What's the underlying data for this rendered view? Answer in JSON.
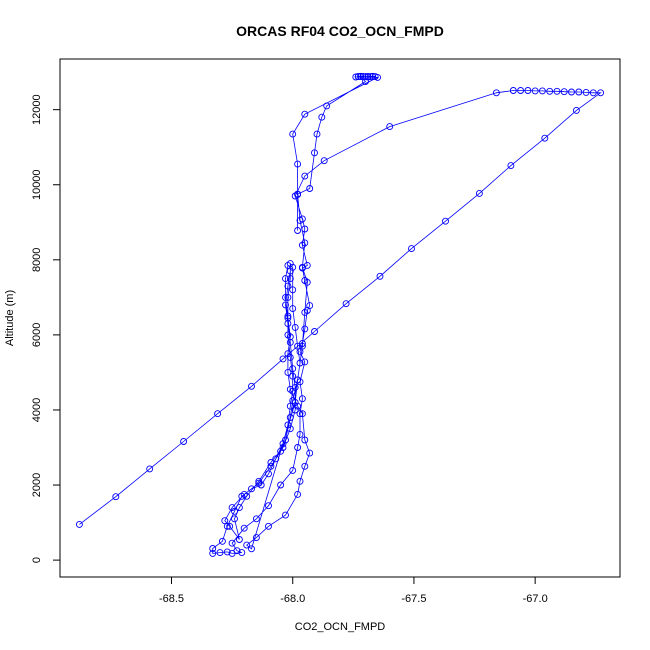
{
  "chart_data": {
    "type": "line",
    "title": "ORCAS RF04 CO2_OCN_FMPD",
    "xlabel": "CO2_OCN_FMPD",
    "ylabel": "Altitude (m)",
    "xlim": [
      -68.96,
      -66.65
    ],
    "ylim": [
      -450,
      13350
    ],
    "xticks": [
      -68.5,
      -68.0,
      -67.5,
      -67.0
    ],
    "xtick_labels": [
      "-68.5",
      "-68.0",
      "-67.5",
      "-67.0"
    ],
    "yticks": [
      0,
      2000,
      4000,
      6000,
      8000,
      10000,
      12000
    ],
    "ytick_labels": [
      "0",
      "2000",
      "4000",
      "6000",
      "8000",
      "10000",
      "12000"
    ],
    "grid": false,
    "series": [
      {
        "color": "#0000ff",
        "marker": "open-circle",
        "points": [
          [
            -68.88,
            950
          ],
          [
            -68.73,
            1690
          ],
          [
            -68.59,
            2430
          ],
          [
            -68.45,
            3160
          ],
          [
            -68.31,
            3900
          ],
          [
            -68.17,
            4630
          ],
          [
            -68.04,
            5360
          ],
          [
            -67.91,
            6090
          ],
          [
            -67.78,
            6830
          ],
          [
            -67.64,
            7560
          ],
          [
            -67.51,
            8300
          ],
          [
            -67.37,
            9030
          ],
          [
            -67.23,
            9770
          ],
          [
            -67.1,
            10510
          ],
          [
            -66.96,
            11240
          ],
          [
            -66.83,
            11980
          ],
          [
            -66.73,
            12450
          ],
          [
            -66.76,
            12450
          ],
          [
            -66.79,
            12460
          ],
          [
            -66.82,
            12470
          ],
          [
            -66.85,
            12470
          ],
          [
            -66.88,
            12480
          ],
          [
            -66.91,
            12490
          ],
          [
            -66.94,
            12490
          ],
          [
            -66.97,
            12500
          ],
          [
            -67.0,
            12500
          ],
          [
            -67.03,
            12510
          ],
          [
            -67.06,
            12510
          ],
          [
            -67.09,
            12510
          ],
          [
            -67.16,
            12450
          ],
          [
            -67.6,
            11550
          ],
          [
            -67.87,
            10640
          ],
          [
            -67.95,
            10230
          ],
          [
            -67.99,
            9700
          ],
          [
            -67.96,
            9090
          ],
          [
            -67.95,
            8820
          ],
          [
            -67.96,
            8390
          ],
          [
            -67.94,
            7850
          ],
          [
            -67.96,
            7780
          ],
          [
            -67.95,
            7450
          ],
          [
            -67.93,
            6780
          ],
          [
            -67.94,
            6650
          ],
          [
            -67.95,
            6160
          ],
          [
            -67.96,
            5770
          ],
          [
            -67.97,
            5550
          ],
          [
            -67.95,
            5280
          ],
          [
            -67.97,
            4750
          ],
          [
            -67.96,
            4300
          ],
          [
            -67.97,
            3900
          ],
          [
            -67.97,
            3350
          ],
          [
            -67.98,
            3000
          ],
          [
            -68.0,
            2390
          ],
          [
            -68.05,
            2000
          ],
          [
            -68.1,
            1450
          ],
          [
            -68.15,
            1100
          ],
          [
            -68.2,
            850
          ],
          [
            -68.25,
            450
          ],
          [
            -68.23,
            250
          ],
          [
            -68.21,
            200
          ],
          [
            -68.25,
            180
          ],
          [
            -68.27,
            220
          ],
          [
            -68.3,
            200
          ],
          [
            -68.33,
            180
          ],
          [
            -68.33,
            310
          ],
          [
            -68.29,
            500
          ],
          [
            -68.27,
            900
          ],
          [
            -68.24,
            1300
          ],
          [
            -68.21,
            1700
          ],
          [
            -68.17,
            1900
          ],
          [
            -68.13,
            2000
          ],
          [
            -68.1,
            2300
          ],
          [
            -68.07,
            2700
          ],
          [
            -68.04,
            3100
          ],
          [
            -68.02,
            3600
          ],
          [
            -68.01,
            4100
          ],
          [
            -68.0,
            4500
          ],
          [
            -68.0,
            4900
          ],
          [
            -68.01,
            5400
          ],
          [
            -68.02,
            6000
          ],
          [
            -68.02,
            6500
          ],
          [
            -68.02,
            7000
          ],
          [
            -68.01,
            7500
          ],
          [
            -68.01,
            7900
          ],
          [
            -68.01,
            7700
          ],
          [
            -68.02,
            7300
          ],
          [
            -68.03,
            6800
          ],
          [
            -68.02,
            6300
          ],
          [
            -68.01,
            5800
          ],
          [
            -68.0,
            5100
          ],
          [
            -67.99,
            4600
          ],
          [
            -67.99,
            4000
          ],
          [
            -68.01,
            3500
          ],
          [
            -68.04,
            3000
          ],
          [
            -68.09,
            2600
          ],
          [
            -68.14,
            2100
          ],
          [
            -68.19,
            1700
          ],
          [
            -68.22,
            1400
          ],
          [
            -68.24,
            1100
          ],
          [
            -68.22,
            550
          ],
          [
            -68.26,
            900
          ],
          [
            -68.28,
            1050
          ],
          [
            -68.25,
            1400
          ],
          [
            -68.2,
            1750
          ],
          [
            -68.14,
            2050
          ],
          [
            -68.09,
            2500
          ],
          [
            -68.05,
            2900
          ],
          [
            -68.03,
            3200
          ],
          [
            -68.01,
            3800
          ],
          [
            -68.0,
            4250
          ],
          [
            -67.98,
            4800
          ],
          [
            -67.97,
            5250
          ],
          [
            -67.98,
            5700
          ],
          [
            -67.99,
            6200
          ],
          [
            -68.0,
            6700
          ],
          [
            -68.0,
            7200
          ],
          [
            -68.0,
            7800
          ],
          [
            -68.02,
            7850
          ],
          [
            -68.03,
            7500
          ],
          [
            -68.03,
            7000
          ],
          [
            -68.02,
            6450
          ],
          [
            -68.01,
            5950
          ],
          [
            -68.02,
            5500
          ],
          [
            -68.02,
            5000
          ],
          [
            -68.01,
            4550
          ],
          [
            -67.98,
            4100
          ],
          [
            -67.96,
            3900
          ],
          [
            -67.95,
            3200
          ],
          [
            -67.93,
            2850
          ],
          [
            -67.95,
            2500
          ],
          [
            -67.97,
            2100
          ],
          [
            -67.98,
            1750
          ],
          [
            -68.03,
            1200
          ],
          [
            -68.1,
            900
          ],
          [
            -68.15,
            600
          ],
          [
            -68.19,
            400
          ],
          [
            -68.17,
            300
          ],
          [
            -67.99,
            4200
          ],
          [
            -67.98,
            4800
          ],
          [
            -67.96,
            5700
          ],
          [
            -67.95,
            6600
          ],
          [
            -67.94,
            7400
          ],
          [
            -67.96,
            7800
          ],
          [
            -67.95,
            8450
          ],
          [
            -67.97,
            9050
          ],
          [
            -67.98,
            9750
          ],
          [
            -67.93,
            9900
          ],
          [
            -67.91,
            10850
          ],
          [
            -67.9,
            11350
          ],
          [
            -67.88,
            11800
          ],
          [
            -67.86,
            12100
          ],
          [
            -67.7,
            12750
          ],
          [
            -67.72,
            12880
          ],
          [
            -67.71,
            12880
          ],
          [
            -67.7,
            12880
          ],
          [
            -67.69,
            12880
          ],
          [
            -67.68,
            12880
          ],
          [
            -67.67,
            12880
          ],
          [
            -67.66,
            12880
          ],
          [
            -67.67,
            12890
          ],
          [
            -67.69,
            12880
          ],
          [
            -67.71,
            12880
          ],
          [
            -67.73,
            12880
          ],
          [
            -67.74,
            12870
          ],
          [
            -67.73,
            12880
          ],
          [
            -67.72,
            12890
          ],
          [
            -67.69,
            12870
          ],
          [
            -67.65,
            12860
          ],
          [
            -67.95,
            11880
          ],
          [
            -68.0,
            11350
          ],
          [
            -67.98,
            10550
          ],
          [
            -67.98,
            9740
          ],
          [
            -67.98,
            8780
          ]
        ]
      }
    ]
  }
}
